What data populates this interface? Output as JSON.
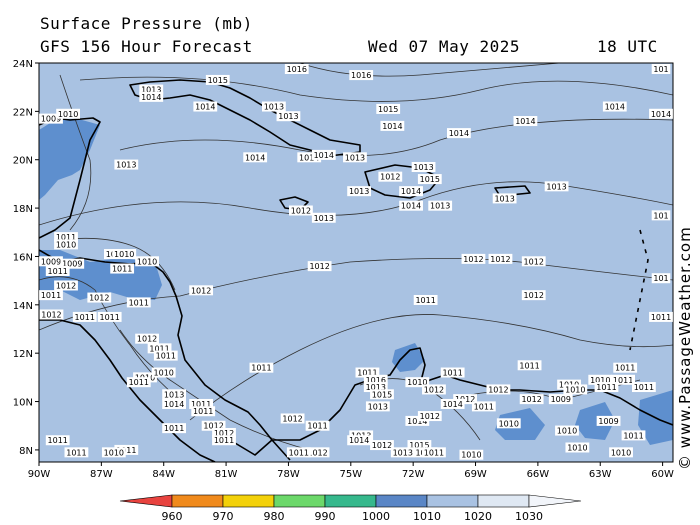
{
  "header": {
    "title": "Surface Pressure (mb)",
    "subtitle": "GFS 156 Hour Forecast",
    "date": "Wed 07 May 2025",
    "time": "18 UTC"
  },
  "axes": {
    "lon_labels": [
      "90W",
      "87W",
      "84W",
      "81W",
      "78W",
      "75W",
      "72W",
      "69W",
      "66W",
      "63W",
      "60W"
    ],
    "lat_labels": [
      "24N",
      "22N",
      "20N",
      "18N",
      "16N",
      "14N",
      "12N",
      "10N",
      "8N"
    ],
    "lon_range": [
      -90,
      -59.5
    ],
    "lat_range": [
      7.5,
      24
    ]
  },
  "colors": {
    "sea": "#a9c2e2",
    "low_pressure": "#5e8fce",
    "land_outline": "#000000",
    "isobar": "#333333"
  },
  "pressure_labels": [
    {
      "text": "1016",
      "lon": -77.6,
      "lat": 23.8
    },
    {
      "text": "1016",
      "lon": -74.5,
      "lat": 23.5
    },
    {
      "text": "101",
      "lon": -60,
      "lat": 23.8
    },
    {
      "text": "1015",
      "lon": -81.4,
      "lat": 23.3
    },
    {
      "text": "1013",
      "lon": -84.6,
      "lat": 22.9
    },
    {
      "text": "1014",
      "lon": -84.6,
      "lat": 22.6
    },
    {
      "text": "1014",
      "lon": -82,
      "lat": 22.2
    },
    {
      "text": "1013",
      "lon": -78.7,
      "lat": 22.2
    },
    {
      "text": "1013",
      "lon": -78,
      "lat": 21.8
    },
    {
      "text": "1015",
      "lon": -73.2,
      "lat": 22.1
    },
    {
      "text": "1014",
      "lon": -73,
      "lat": 21.4
    },
    {
      "text": "1014",
      "lon": -69.8,
      "lat": 21.1
    },
    {
      "text": "1014",
      "lon": -66.6,
      "lat": 21.6
    },
    {
      "text": "1014",
      "lon": -62.3,
      "lat": 22.2
    },
    {
      "text": "1014",
      "lon": -59.9,
      "lat": 21.9
    },
    {
      "text": "1009",
      "lon": -89.7,
      "lat": 21.7
    },
    {
      "text": "1010",
      "lon": -88.6,
      "lat": 21.9
    },
    {
      "text": "1013",
      "lon": -85.8,
      "lat": 19.8
    },
    {
      "text": "1014",
      "lon": -79.6,
      "lat": 20.1
    },
    {
      "text": "1014",
      "lon": -77,
      "lat": 20.1
    },
    {
      "text": "1014",
      "lon": -76.3,
      "lat": 20.2
    },
    {
      "text": "1013",
      "lon": -74.8,
      "lat": 20.1
    },
    {
      "text": "1013",
      "lon": -71.5,
      "lat": 19.7
    },
    {
      "text": "1012",
      "lon": -73.1,
      "lat": 19.3
    },
    {
      "text": "1015",
      "lon": -71.2,
      "lat": 19.2
    },
    {
      "text": "1014",
      "lon": -72.1,
      "lat": 18.7
    },
    {
      "text": "1013",
      "lon": -74.6,
      "lat": 18.7
    },
    {
      "text": "1014",
      "lon": -72.1,
      "lat": 18.1
    },
    {
      "text": "1013",
      "lon": -70.7,
      "lat": 18.1
    },
    {
      "text": "1012",
      "lon": -77.4,
      "lat": 17.9
    },
    {
      "text": "1013",
      "lon": -76.3,
      "lat": 17.6
    },
    {
      "text": "1013",
      "lon": -67.6,
      "lat": 18.4
    },
    {
      "text": "1013",
      "lon": -65.1,
      "lat": 18.9
    },
    {
      "text": "101",
      "lon": -60,
      "lat": 17.7
    },
    {
      "text": "1011",
      "lon": -88.7,
      "lat": 16.8
    },
    {
      "text": "1010",
      "lon": -88.7,
      "lat": 16.5
    },
    {
      "text": "1011",
      "lon": -86.3,
      "lat": 16.1
    },
    {
      "text": "1010",
      "lon": -85.9,
      "lat": 16.1
    },
    {
      "text": "1009",
      "lon": -89.5,
      "lat": 15.8
    },
    {
      "text": "1009",
      "lon": -88.4,
      "lat": 15.7
    },
    {
      "text": "1010",
      "lon": -84.8,
      "lat": 15.8
    },
    {
      "text": "1011",
      "lon": -89.1,
      "lat": 15.4
    },
    {
      "text": "1011",
      "lon": -86,
      "lat": 15.5
    },
    {
      "text": "1012",
      "lon": -76.5,
      "lat": 15.6
    },
    {
      "text": "1012",
      "lon": -69.1,
      "lat": 15.9
    },
    {
      "text": "1012",
      "lon": -67.8,
      "lat": 15.9
    },
    {
      "text": "1012",
      "lon": -66.2,
      "lat": 15.8
    },
    {
      "text": "1012",
      "lon": -88.7,
      "lat": 14.8
    },
    {
      "text": "1011",
      "lon": -89.5,
      "lat": 14.4
    },
    {
      "text": "1012",
      "lon": -87.1,
      "lat": 14.3
    },
    {
      "text": "1012",
      "lon": -82.2,
      "lat": 14.6
    },
    {
      "text": "1012",
      "lon": -66.2,
      "lat": 14.4
    },
    {
      "text": "101",
      "lon": -60,
      "lat": 15.1
    },
    {
      "text": "1012",
      "lon": -89.4,
      "lat": 13.6
    },
    {
      "text": "1011",
      "lon": -87.8,
      "lat": 13.5
    },
    {
      "text": "1011",
      "lon": -86.6,
      "lat": 13.5
    },
    {
      "text": "1011",
      "lon": -85.2,
      "lat": 14.1
    },
    {
      "text": "1011",
      "lon": -71.4,
      "lat": 14.2
    },
    {
      "text": "1011",
      "lon": -60,
      "lat": 13.5
    },
    {
      "text": "1012",
      "lon": -84.8,
      "lat": 12.6
    },
    {
      "text": "1011",
      "lon": -84.2,
      "lat": 12.2
    },
    {
      "text": "1011",
      "lon": -83.9,
      "lat": 11.9
    },
    {
      "text": "1011",
      "lon": -79.3,
      "lat": 11.4
    },
    {
      "text": "1011",
      "lon": -74.2,
      "lat": 11.2
    },
    {
      "text": "1011",
      "lon": -70.1,
      "lat": 11.2
    },
    {
      "text": "1011",
      "lon": -66.4,
      "lat": 11.5
    },
    {
      "text": "1011",
      "lon": -61.8,
      "lat": 11.4
    },
    {
      "text": "1010",
      "lon": -84.9,
      "lat": 11
    },
    {
      "text": "1010",
      "lon": -84,
      "lat": 11.2
    },
    {
      "text": "1016",
      "lon": -73.8,
      "lat": 10.9
    },
    {
      "text": "1010",
      "lon": -71.8,
      "lat": 10.8
    },
    {
      "text": "1011",
      "lon": -61.9,
      "lat": 10.9
    },
    {
      "text": "1011",
      "lon": -85.2,
      "lat": 10.8
    },
    {
      "text": "1013",
      "lon": -73.8,
      "lat": 10.6
    },
    {
      "text": "1015",
      "lon": -73.5,
      "lat": 10.3
    },
    {
      "text": "1012",
      "lon": -71,
      "lat": 10.5
    },
    {
      "text": "1012",
      "lon": -67.9,
      "lat": 10.5
    },
    {
      "text": "1010",
      "lon": -64.5,
      "lat": 10.7
    },
    {
      "text": "1010",
      "lon": -63,
      "lat": 10.9
    },
    {
      "text": "1010",
      "lon": -64.2,
      "lat": 10.5
    },
    {
      "text": "1011",
      "lon": -62.7,
      "lat": 10.6
    },
    {
      "text": "1011",
      "lon": -60.9,
      "lat": 10.6
    },
    {
      "text": "1012",
      "lon": -69.5,
      "lat": 10.1
    },
    {
      "text": "1013",
      "lon": -83.5,
      "lat": 10.3
    },
    {
      "text": "1014",
      "lon": -83.5,
      "lat": 9.9
    },
    {
      "text": "1011",
      "lon": -82.2,
      "lat": 9.9
    },
    {
      "text": "1013",
      "lon": -73.7,
      "lat": 9.8
    },
    {
      "text": "1014",
      "lon": -70.1,
      "lat": 9.9
    },
    {
      "text": "1011",
      "lon": -68.6,
      "lat": 9.8
    },
    {
      "text": "1012",
      "lon": -66.3,
      "lat": 10.1
    },
    {
      "text": "1009",
      "lon": -64.9,
      "lat": 10.1
    },
    {
      "text": "1010",
      "lon": -67.4,
      "lat": 9.1
    },
    {
      "text": "1009",
      "lon": -62.6,
      "lat": 9.2
    },
    {
      "text": "1010",
      "lon": -64.6,
      "lat": 8.8
    },
    {
      "text": "1011",
      "lon": -61.4,
      "lat": 8.6
    },
    {
      "text": "1011",
      "lon": -82.1,
      "lat": 9.6
    },
    {
      "text": "1012",
      "lon": -81.6,
      "lat": 9
    },
    {
      "text": "1011",
      "lon": -83.5,
      "lat": 8.9
    },
    {
      "text": "1012",
      "lon": -81.1,
      "lat": 8.7
    },
    {
      "text": "1011",
      "lon": -81.1,
      "lat": 8.4
    },
    {
      "text": "1012",
      "lon": -77.8,
      "lat": 9.3
    },
    {
      "text": "1011",
      "lon": -76.6,
      "lat": 9
    },
    {
      "text": "1013",
      "lon": -74.5,
      "lat": 8.6
    },
    {
      "text": "1014",
      "lon": -74.6,
      "lat": 8.4
    },
    {
      "text": "1012",
      "lon": -73.5,
      "lat": 8.2
    },
    {
      "text": "1015",
      "lon": -71.7,
      "lat": 8.2
    },
    {
      "text": "1013",
      "lon": -72.5,
      "lat": 7.9
    },
    {
      "text": "1014",
      "lon": -71.4,
      "lat": 7.9
    },
    {
      "text": "1011",
      "lon": -71,
      "lat": 7.9
    },
    {
      "text": "1011",
      "lon": -89.1,
      "lat": 8.4
    },
    {
      "text": "1011",
      "lon": -88.2,
      "lat": 7.9
    },
    {
      "text": "1011",
      "lon": -85.8,
      "lat": 8
    },
    {
      "text": "1010",
      "lon": -86.4,
      "lat": 7.9
    },
    {
      "text": "1012",
      "lon": -76.6,
      "lat": 7.9
    },
    {
      "text": "1011",
      "lon": -77.5,
      "lat": 7.9
    },
    {
      "text": "1010",
      "lon": -64.1,
      "lat": 8.1
    },
    {
      "text": "1010",
      "lon": -62,
      "lat": 7.9
    },
    {
      "text": "1010",
      "lon": -69.2,
      "lat": 7.8
    },
    {
      "text": "1014",
      "lon": -71.8,
      "lat": 9.2
    },
    {
      "text": "1012",
      "lon": -71.2,
      "lat": 9.4
    }
  ],
  "colorbar": {
    "labels": [
      "960",
      "970",
      "980",
      "990",
      "1000",
      "1010",
      "1020",
      "1030"
    ],
    "colors": [
      "#e8433f",
      "#f08a1c",
      "#f3d10a",
      "#6cd86a",
      "#36b88c",
      "#5a86c6",
      "#a9c2e2",
      "#dfe8f3"
    ]
  },
  "copyright": "© www.PassageWeather.com"
}
